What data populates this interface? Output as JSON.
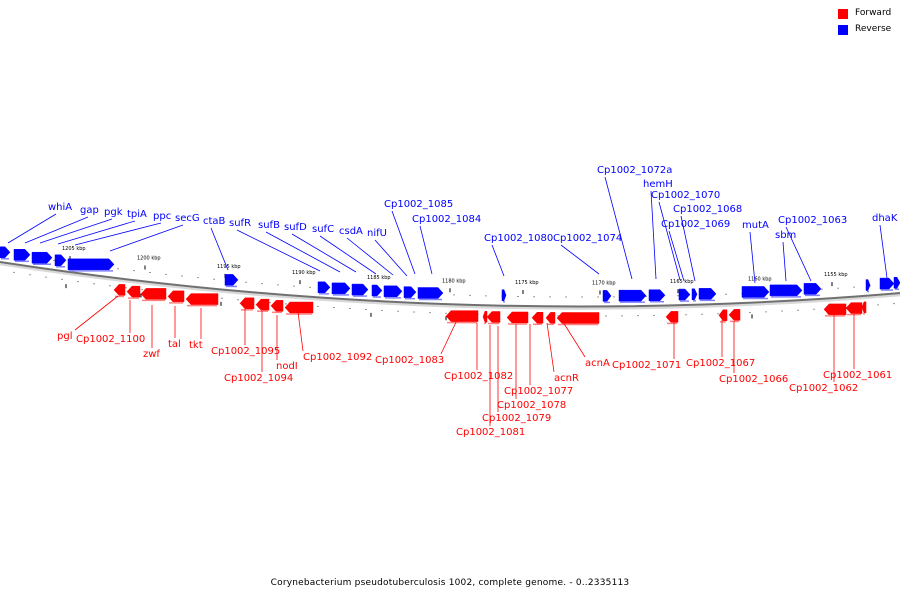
{
  "legend": {
    "forward": {
      "label": "Forward",
      "color": "#ff0000"
    },
    "reverse": {
      "label": "Reverse",
      "color": "#0000ff"
    }
  },
  "caption": "Corynebacterium pseudotuberculosis 1002, complete genome. - 0..2335113",
  "ticks": [
    "1205 kbp",
    "1200 kbp",
    "1195 kbp",
    "1190 kbp",
    "1185 kbp",
    "1180 kbp",
    "1175 kbp",
    "1170 kbp",
    "1165 kbp",
    "1160 kbp",
    "1155 kbp"
  ],
  "reverse_genes": [
    "whiA",
    "gap",
    "pgk",
    "tpiA",
    "ppc",
    "secG",
    "ctaB",
    "sufR",
    "sufB",
    "sufD",
    "sufC",
    "csdA",
    "nifU",
    "Cp1002_1085",
    "Cp1002_1084",
    "Cp1002_1080",
    "Cp1002_1074",
    "Cp1002_1072a",
    "hemH",
    "Cp1002_1070",
    "Cp1002_1068",
    "Cp1002_1069",
    "mutA",
    "sbm",
    "Cp1002_1063",
    "dhaK"
  ],
  "forward_genes": [
    "pgl",
    "Cp1002_1100",
    "zwf",
    "tal",
    "tkt",
    "Cp1002_1095",
    "Cp1002_1094",
    "nodI",
    "Cp1002_1092",
    "Cp1002_1083",
    "Cp1002_1082",
    "Cp1002_1081",
    "Cp1002_1079",
    "Cp1002_1078",
    "Cp1002_1077",
    "acnR",
    "acnA",
    "Cp1002_1071",
    "Cp1002_1067",
    "Cp1002_1066",
    "Cp1002_1062",
    "Cp1002_1061"
  ]
}
